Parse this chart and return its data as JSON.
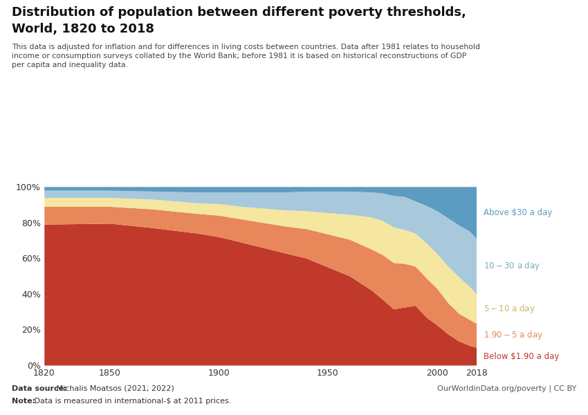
{
  "title_line1": "Distribution of population between different poverty thresholds,",
  "title_line2": "World, 1820 to 2018",
  "subtitle": "This data is adjusted for inflation and for differences in living costs between countries. Data after 1981 relates to household\nincome or consumption surveys collated by the World Bank; before 1981 it is based on historical reconstructions of GDP\nper capita and inequality data.",
  "datasource_bold": "Data source:",
  "datasource_normal": " Michalis Moatsos (2021; 2022)",
  "note_bold": "Note:",
  "note_normal": " Data is measured in international-$ at 2011 prices.",
  "owid_text": "OurWorldinData.org/poverty | CC BY",
  "years": [
    1820,
    1850,
    1870,
    1890,
    1900,
    1910,
    1920,
    1930,
    1940,
    1950,
    1960,
    1970,
    1975,
    1980,
    1985,
    1990,
    1995,
    2000,
    2005,
    2010,
    2015,
    2018
  ],
  "below_190": [
    79.0,
    79.5,
    77.0,
    74.0,
    72.0,
    69.0,
    66.0,
    63.0,
    60.0,
    55.0,
    50.0,
    42.0,
    37.0,
    31.5,
    32.5,
    33.5,
    27.0,
    22.5,
    17.5,
    13.5,
    11.0,
    10.0
  ],
  "r190_5": [
    10.0,
    9.5,
    10.5,
    11.0,
    12.0,
    13.0,
    14.0,
    15.0,
    16.5,
    18.5,
    20.5,
    23.0,
    25.0,
    26.0,
    24.5,
    22.0,
    22.0,
    20.5,
    17.5,
    15.5,
    14.5,
    13.5
  ],
  "r5_10": [
    5.0,
    5.0,
    5.5,
    6.0,
    6.5,
    7.0,
    8.0,
    9.0,
    10.0,
    12.0,
    14.0,
    18.0,
    19.0,
    20.0,
    19.0,
    18.5,
    19.5,
    19.5,
    20.5,
    20.5,
    18.5,
    16.5
  ],
  "r10_30": [
    4.0,
    4.0,
    4.5,
    6.0,
    6.5,
    8.0,
    9.0,
    10.0,
    11.0,
    12.0,
    13.0,
    14.0,
    15.5,
    17.5,
    18.5,
    18.0,
    21.0,
    24.0,
    27.0,
    29.0,
    31.0,
    31.0
  ],
  "above_30": [
    2.0,
    2.0,
    2.5,
    3.0,
    3.0,
    3.0,
    3.0,
    3.0,
    2.5,
    2.5,
    2.5,
    3.0,
    3.5,
    5.0,
    5.5,
    8.0,
    10.5,
    13.5,
    17.5,
    21.5,
    25.0,
    29.0
  ],
  "colors": {
    "below_190": "#C0392B",
    "r190_5": "#E8875A",
    "r5_10": "#F5E6A0",
    "r10_30": "#A8C8DC",
    "above_30": "#5B9CC0"
  },
  "labels": {
    "below_190": "Below $1.90 a day",
    "r190_5": "$1.90-$5 a day",
    "r5_10": "$5-$10 a day",
    "r10_30": "$10-$30 a day",
    "above_30": "Above $30 a day"
  },
  "label_colors": {
    "below_190": "#C0392B",
    "r190_5": "#E8875A",
    "r5_10": "#C8B86A",
    "r10_30": "#7AAABE",
    "above_30": "#5B9CC0"
  },
  "background_color": "#FFFFFF",
  "xlim": [
    1820,
    2018
  ],
  "ylim": [
    0,
    100
  ],
  "xticks": [
    1820,
    1850,
    1900,
    1950,
    2000,
    2018
  ]
}
